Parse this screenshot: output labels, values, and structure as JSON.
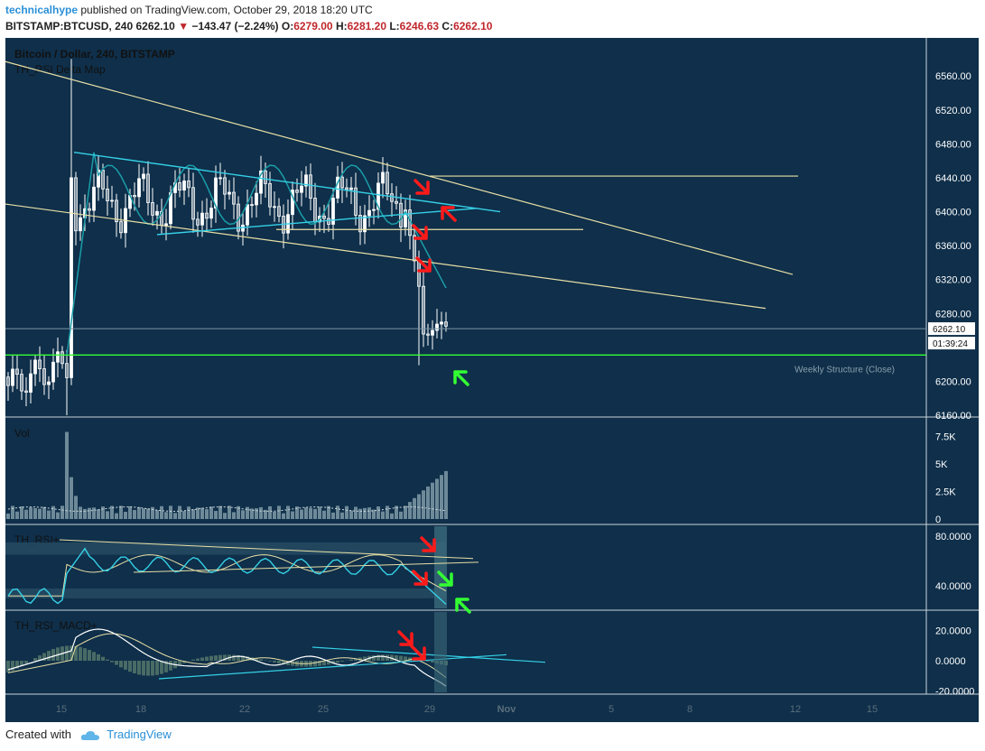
{
  "header": {
    "author": "technicalhype",
    "published_text": "published on TradingView.com, October 29, 2018 18:20 UTC",
    "symbol": "BITSTAMP:BTCUSD, 240",
    "last": "6262.10",
    "change_arrow": "▼",
    "change": "−143.47 (−2.24%)",
    "o_label": "O:",
    "o_value": "6279.00",
    "h_label": "H:",
    "h_value": "6281.20",
    "l_label": "L:",
    "l_value": "6246.63",
    "c_label": "C:",
    "c_value": "6262.10"
  },
  "footer": {
    "created_with": "Created with",
    "brand": "TradingView"
  },
  "colors": {
    "background": "#0f2f4a",
    "candle": "#ffffff",
    "trendline": "#e8dfa6",
    "channel": "#35d0e6",
    "support": "#35ff35",
    "red_arrow": "#ff1a1a",
    "green_arrow": "#33ff33",
    "volume": "#6e8a99",
    "axis_text": "#ffffff"
  },
  "chart_data": [
    {
      "type": "candlestick",
      "title": "Bitcoin / Dollar, 240, BITSTAMP",
      "indicator_label": "TH_RSI Delta Map",
      "x_ticks": [
        "15",
        "18",
        "22",
        "25",
        "29",
        "Nov",
        "5",
        "8",
        "12",
        "15"
      ],
      "y_ticks": [
        "6560.00",
        "6520.00",
        "6480.00",
        "6440.00",
        "6400.00",
        "6360.00",
        "6320.00",
        "6280.00",
        "6200.00",
        "6160.00"
      ],
      "ylim": [
        6160,
        6590
      ],
      "price_label": "6262.10",
      "countdown_label": "01:39:24",
      "annotation": "Weekly Structure (Close)",
      "support_level": 6231,
      "horizontal_levels": [
        6442,
        6379
      ],
      "last_price": 6262.1
    },
    {
      "type": "bar",
      "title": "Vol",
      "y_ticks": [
        "7.5K",
        "5K",
        "2.5K",
        "0"
      ],
      "ylim": [
        0,
        8600
      ]
    },
    {
      "type": "line",
      "title": "TH_RSI+",
      "y_ticks": [
        "80.0000",
        "40.0000"
      ],
      "ylim": [
        22,
        85
      ]
    },
    {
      "type": "line",
      "title": "TH_RSI_MACD+",
      "y_ticks": [
        "20.0000",
        "0.0000",
        "-20.0000"
      ],
      "ylim": [
        -21,
        30
      ]
    }
  ]
}
